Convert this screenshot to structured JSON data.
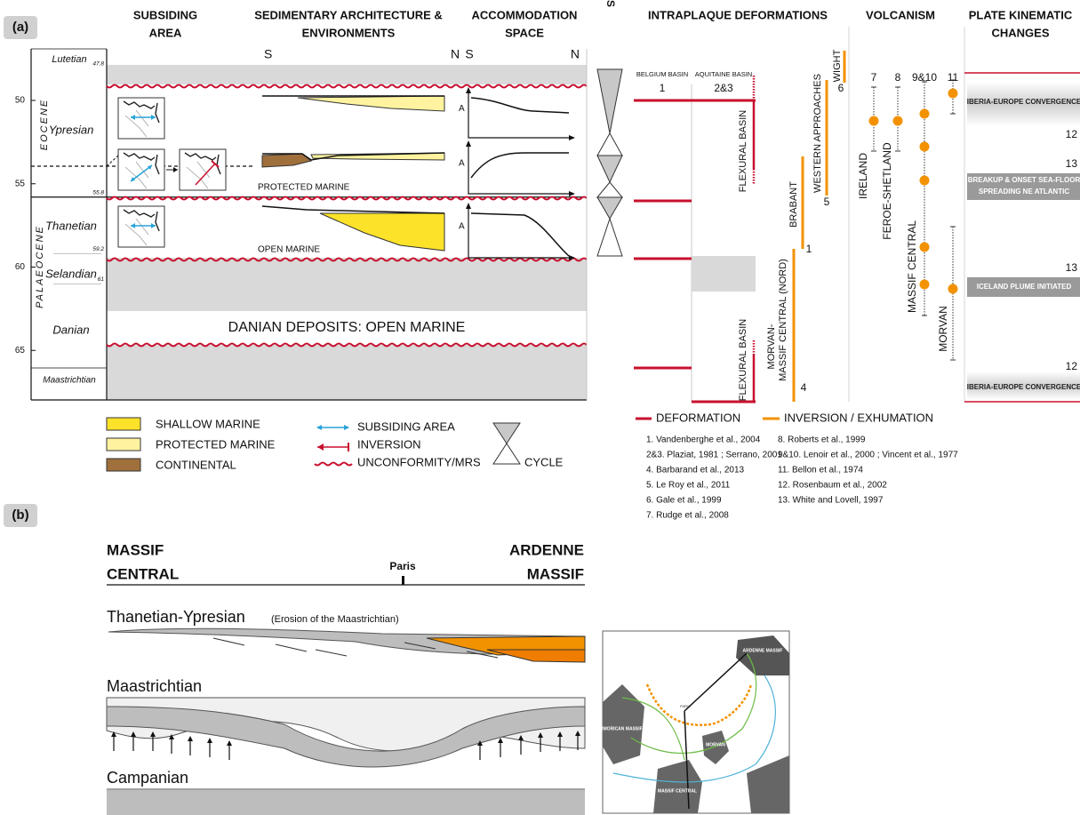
{
  "panel_a": {
    "label": "(a)",
    "headers": {
      "subsiding": [
        "SUBSIDING",
        "AREA"
      ],
      "sedimentary": [
        "SEDIMENTARY ARCHITECTURE &",
        "ENVIRONMENTS"
      ],
      "accommodation": [
        "ACCOMMODATION",
        "SPACE"
      ],
      "cycles": "CYCLES",
      "intraplate": "INTRAPLAQUE DEFORMATIONS",
      "volcanism": "VOLCANISM",
      "plate": [
        "PLATE KINEMATIC",
        "CHANGES"
      ]
    },
    "epochs": [
      "EOCENE",
      "PALAEOCENE"
    ],
    "age_ticks": [
      50,
      55,
      60,
      65
    ],
    "stages": [
      "Lutetian",
      "Ypresian",
      "Thanetian",
      "Selandian",
      "Danian",
      "Maastrichtian"
    ],
    "boundaries": [
      47.8,
      55.8,
      59.2,
      61
    ],
    "directions": [
      "S",
      "N",
      "S",
      "N"
    ],
    "environments": [
      "PROTECTED MARINE",
      "OPEN MARINE"
    ],
    "accommodation_labels": [
      "A",
      "A",
      "A"
    ],
    "danian": "DANIAN DEPOSITS: OPEN MARINE",
    "basins": [
      {
        "name": "BELGIUM BASIN",
        "number": "1"
      },
      {
        "name": "AQUITAINE BASIN",
        "number": "2&3"
      }
    ],
    "flexural": [
      "FLEXURAL BASIN",
      "FLEXURAL BASIN"
    ],
    "inversions": [
      {
        "name": [
          "WIGHT"
        ],
        "number": "6"
      },
      {
        "name": [
          "WESTERN APPROACHES"
        ],
        "number": "5"
      },
      {
        "name": [
          "BRABANT"
        ],
        "number": "1"
      },
      {
        "name": [
          "MORVAN-",
          "MASSIF CENTRAL (NORD)"
        ],
        "number": "4"
      }
    ],
    "volcanism": [
      {
        "number": "7",
        "name": "IRELAND"
      },
      {
        "number": "8",
        "name": "FEROE-SHETLAND"
      },
      {
        "number": "9&10",
        "name": "MASSIF CENTRAL"
      },
      {
        "number": "11",
        "name": "MORVAN"
      }
    ],
    "plate": [
      {
        "text": [
          "IBERIA-EUROPE CONVERGENCE"
        ],
        "ref": "12"
      },
      {
        "text": [
          "BREAKUP & ONSET SEA-FLOOR",
          "SPREADING NE ATLANTIC"
        ],
        "ref": "13"
      },
      {
        "text": [
          "ICELAND PLUME INITIATED"
        ],
        "ref": "13"
      },
      {
        "text": [
          "IBERIA-EUROPE CONVERGENCE"
        ],
        "ref": "12"
      }
    ],
    "legend": {
      "facies": [
        "SHALLOW MARINE",
        "PROTECTED MARINE",
        "CONTINENTAL"
      ],
      "symbols": [
        "SUBSIDING AREA",
        "INVERSION",
        "UNCONFORMITY/MRS"
      ],
      "cycle": "CYCLE",
      "lines": [
        "DEFORMATION",
        "INVERSION / EXHUMATION"
      ]
    },
    "references": [
      "1. Vandenberghe et al., 2004",
      "2&3. Plaziat, 1981 ; Serrano, 2001",
      "4. Barbarand et al., 2013",
      "5. Le Roy et al., 2011",
      "6. Gale et al., 1999",
      "7. Rudge et al., 2008",
      "8. Roberts et al., 1999",
      "9&10. Lenoir et al., 2000 ; Vincent et al., 1977",
      "11. Bellon et al., 1974",
      "12. Rosenbaum et al., 2002",
      "13. White and Lovell, 1997"
    ]
  },
  "panel_b": {
    "label": "(b)",
    "ends": [
      [
        "MASSIF",
        "CENTRAL"
      ],
      [
        "ARDENNE",
        "MASSIF"
      ]
    ],
    "city": "Paris",
    "sections": [
      "Thanetian-Ypresian",
      "Maastrichtian",
      "Campanian"
    ],
    "note": "(Erosion of the Maastrichtian)",
    "map_labels": [
      "ARDENNE MASSIF",
      "ARMORICAN MASSIF",
      "MASSIF CENTRAL",
      "MORVAN",
      "PARIS"
    ]
  }
}
